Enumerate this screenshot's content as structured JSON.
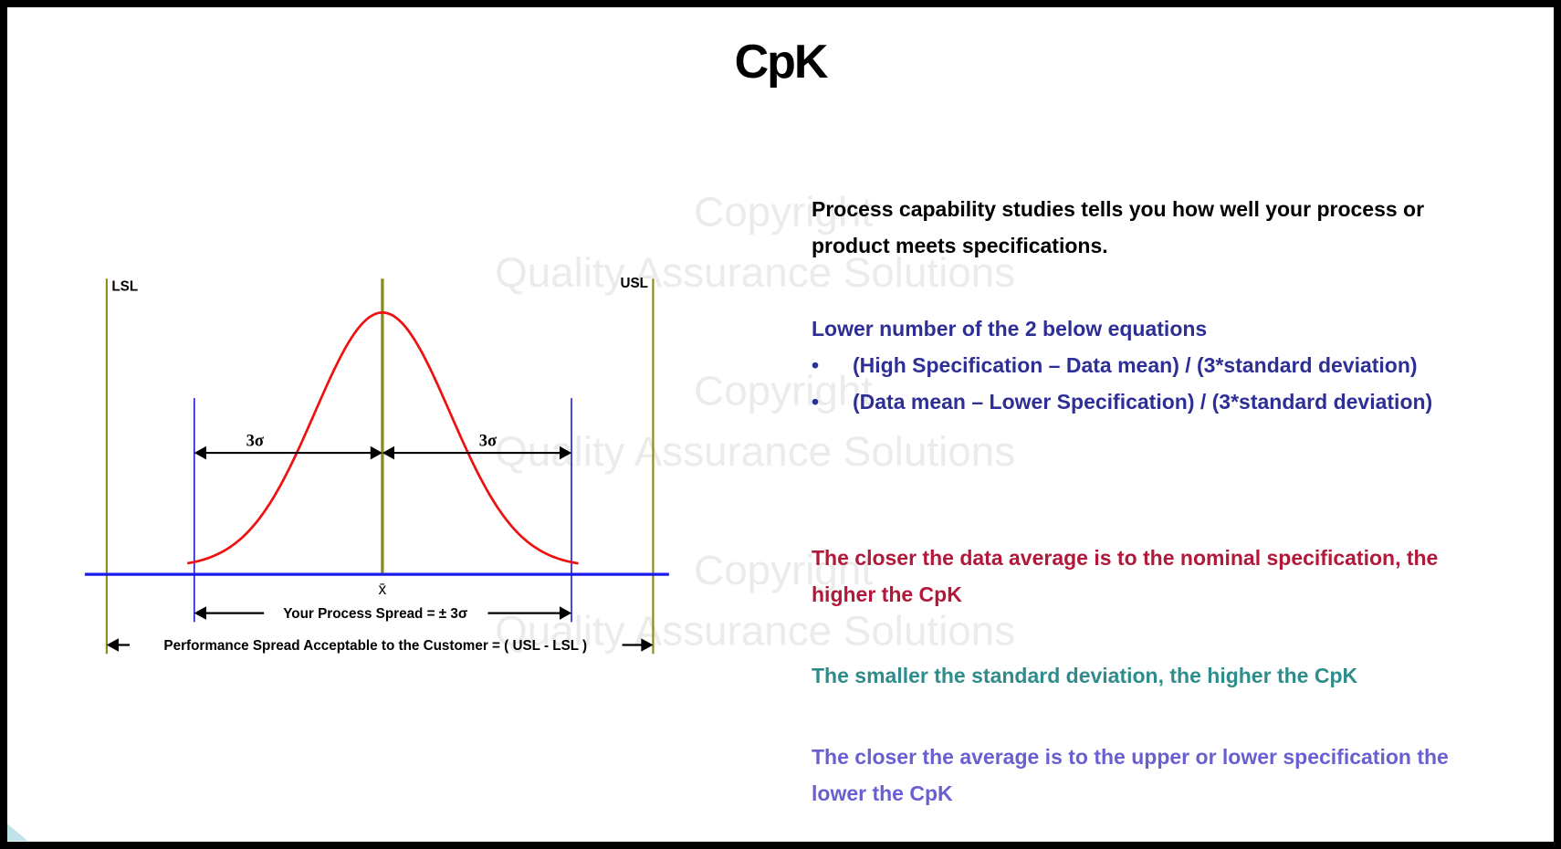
{
  "title": "CpK",
  "diagram": {
    "lsl": "LSL",
    "usl": "USL",
    "left_sigma": "3σ",
    "right_sigma": "3σ",
    "mean": "x̄",
    "process_spread": "Your Process Spread = ± 3σ",
    "performance_spread": "Performance Spread Acceptable to the Customer = ( USL - LSL )"
  },
  "text": {
    "intro": "Process capability studies tells you how well your process or product meets specifications.",
    "equations_heading": "Lower number of the 2 below equations",
    "equations": [
      "(High Specification – Data mean) / (3*standard deviation)",
      "(Data mean – Lower Specification) / (3*standard deviation)"
    ],
    "nominal": "The closer the data average is to the nominal specification, the higher the CpK",
    "std_dev": "The smaller the standard deviation, the higher the CpK",
    "limits": "The closer the average is to the upper or lower specification the lower the CpK"
  },
  "watermark": {
    "line1": "Copyright",
    "line2": "Quality Assurance Solutions"
  }
}
